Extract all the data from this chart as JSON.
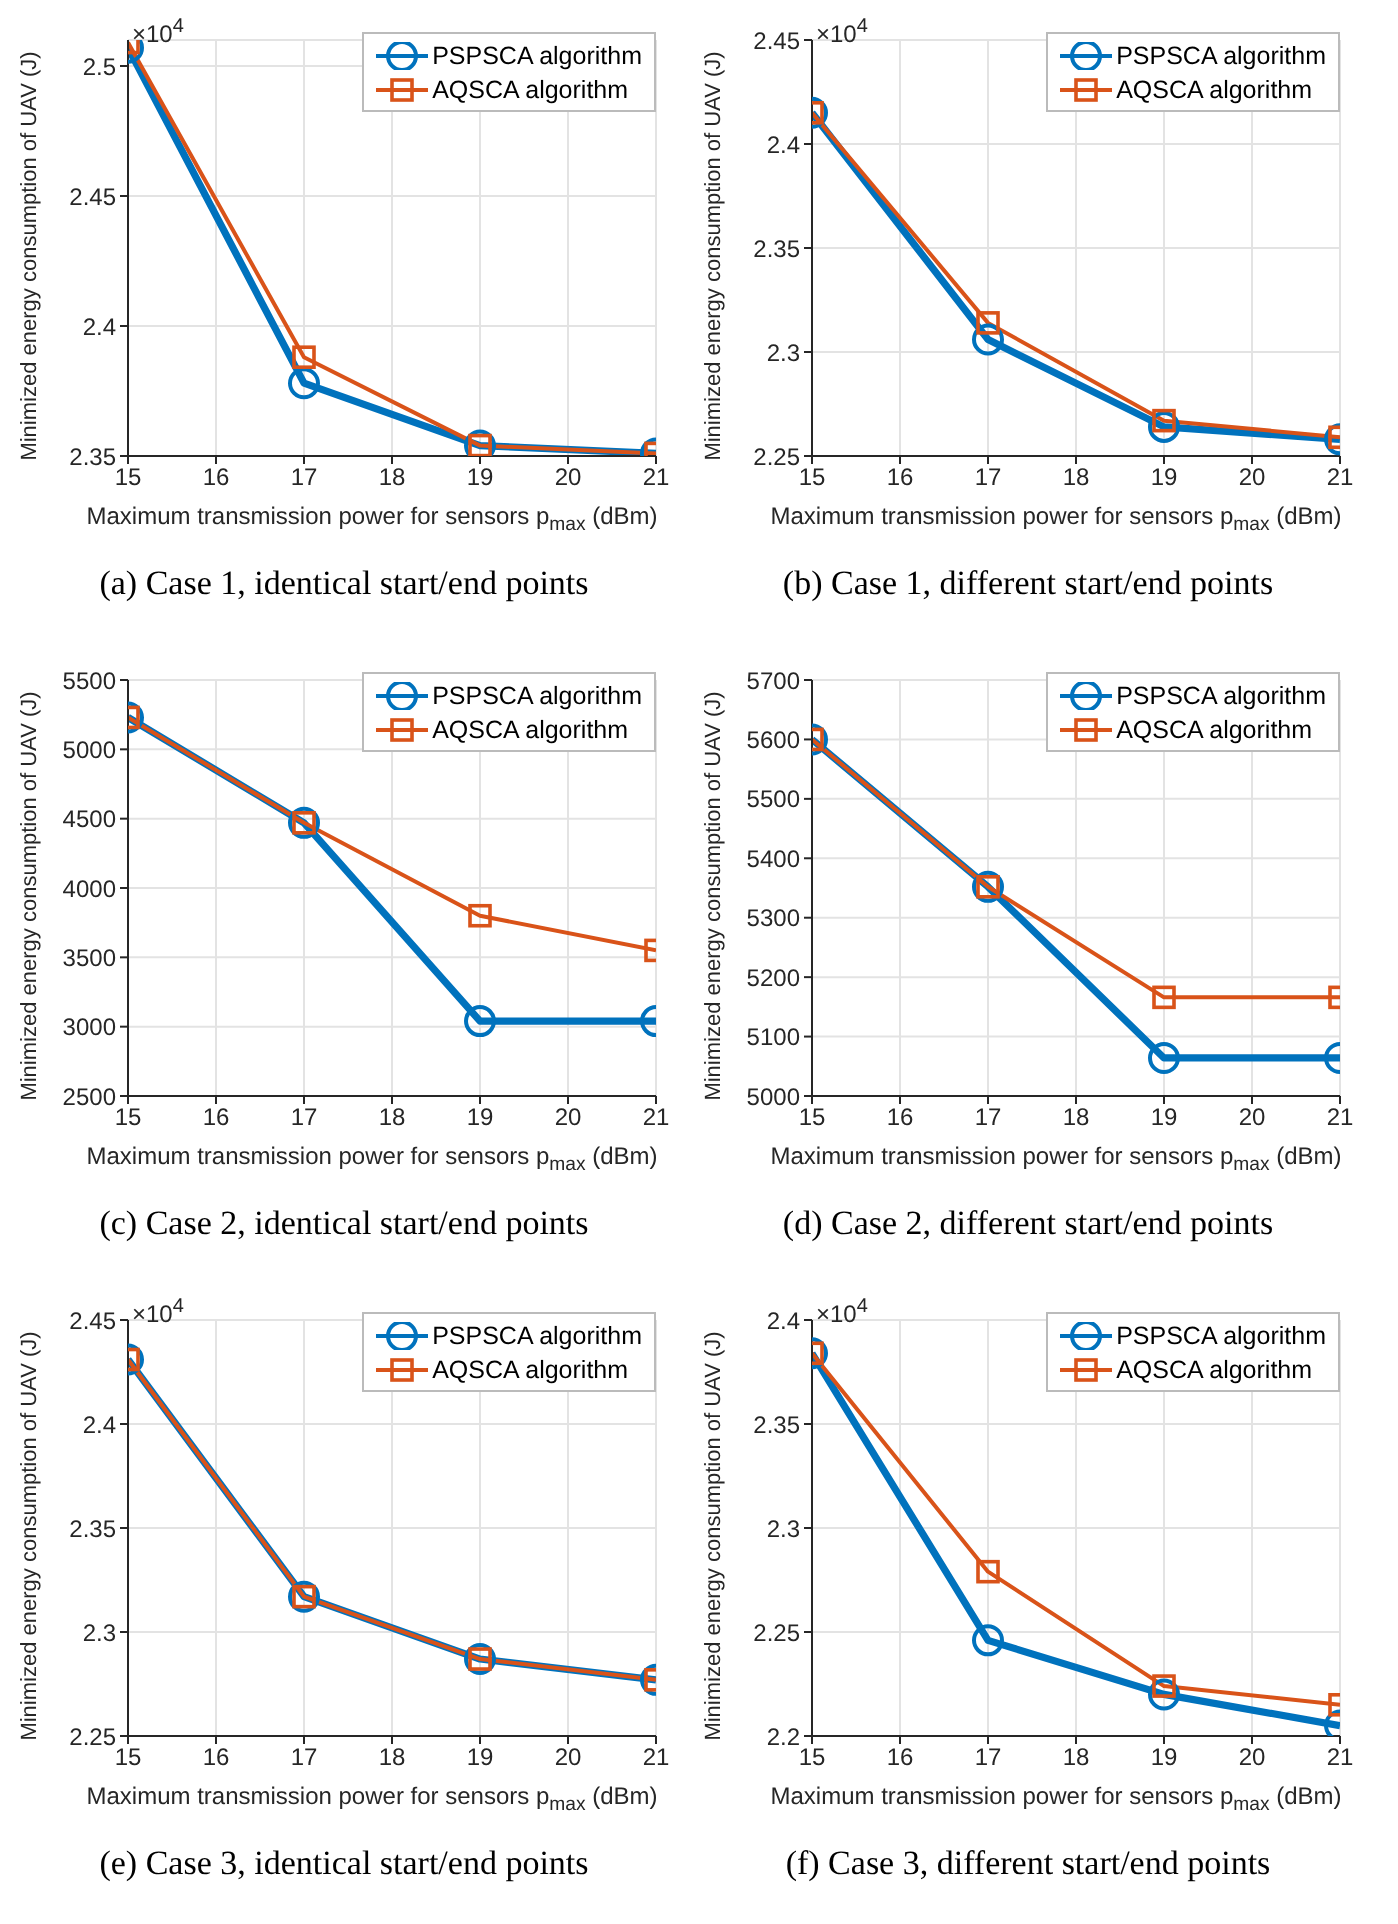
{
  "chart_data": [
    {
      "type": "line",
      "title": "(a) Case 1, identical start/end points",
      "xlabel": "Maximum transmission power for sensors p$_{max}$ (dBm)",
      "ylabel": "Minimized energy consumption of UAV (J)",
      "annotations": [
        "×10$^{4}$"
      ],
      "x": [
        15,
        17,
        19,
        21
      ],
      "xlim": [
        15,
        21
      ],
      "xticks": [
        15,
        16,
        17,
        18,
        19,
        20,
        21
      ],
      "ylim": [
        2.35,
        2.51
      ],
      "yticks": [
        2.35,
        2.4,
        2.45,
        2.5
      ],
      "grid": true,
      "legend": "top right",
      "series": [
        {
          "name": "PSPSCA algorithm",
          "color": "#0072bd",
          "marker": "circle",
          "values": [
            2.507,
            2.378,
            2.354,
            2.351
          ]
        },
        {
          "name": "AQSCA algorithm",
          "color": "#d95319",
          "marker": "square",
          "values": [
            2.509,
            2.388,
            2.354,
            2.351
          ]
        }
      ]
    },
    {
      "type": "line",
      "title": "(b) Case 1, different start/end points",
      "xlabel": "Maximum transmission power for sensors p$_{max}$ (dBm)",
      "ylabel": "Minimized energy consumption of UAV (J)",
      "annotations": [
        "×10$^{4}$"
      ],
      "x": [
        15,
        17,
        19,
        21
      ],
      "xlim": [
        15,
        21
      ],
      "xticks": [
        15,
        16,
        17,
        18,
        19,
        20,
        21
      ],
      "ylim": [
        2.25,
        2.45
      ],
      "yticks": [
        2.25,
        2.3,
        2.35,
        2.4,
        2.45
      ],
      "grid": true,
      "legend": "top right",
      "series": [
        {
          "name": "PSPSCA algorithm",
          "color": "#0072bd",
          "marker": "circle",
          "values": [
            2.415,
            2.306,
            2.264,
            2.258
          ]
        },
        {
          "name": "AQSCA algorithm",
          "color": "#d95319",
          "marker": "square",
          "values": [
            2.415,
            2.314,
            2.267,
            2.259
          ]
        }
      ]
    },
    {
      "type": "line",
      "title": "(c) Case 2, identical start/end points",
      "xlabel": "Maximum transmission power for sensors p$_{max}$ (dBm)",
      "ylabel": "Minimized energy consumption of UAV (J)",
      "x": [
        15,
        17,
        19,
        21
      ],
      "xlim": [
        15,
        21
      ],
      "xticks": [
        15,
        16,
        17,
        18,
        19,
        20,
        21
      ],
      "ylim": [
        2500,
        5500
      ],
      "yticks": [
        2500,
        3000,
        3500,
        4000,
        4500,
        5000,
        5500
      ],
      "grid": true,
      "legend": "top right",
      "series": [
        {
          "name": "PSPSCA algorithm",
          "color": "#0072bd",
          "marker": "circle",
          "values": [
            5230,
            4470,
            3040,
            3040
          ]
        },
        {
          "name": "AQSCA algorithm",
          "color": "#d95319",
          "marker": "square",
          "values": [
            5230,
            4470,
            3800,
            3550
          ]
        }
      ]
    },
    {
      "type": "line",
      "title": "(d) Case 2, different start/end points",
      "xlabel": "Maximum transmission power for sensors p$_{max}$ (dBm)",
      "ylabel": "Minimized energy consumption of UAV (J)",
      "x": [
        15,
        17,
        19,
        21
      ],
      "xlim": [
        15,
        21
      ],
      "xticks": [
        15,
        16,
        17,
        18,
        19,
        20,
        21
      ],
      "ylim": [
        5000,
        5700
      ],
      "yticks": [
        5000,
        5100,
        5200,
        5300,
        5400,
        5500,
        5600,
        5700
      ],
      "grid": true,
      "legend": "top right",
      "series": [
        {
          "name": "PSPSCA algorithm",
          "color": "#0072bd",
          "marker": "circle",
          "values": [
            5600,
            5352,
            5064,
            5064
          ]
        },
        {
          "name": "AQSCA algorithm",
          "color": "#d95319",
          "marker": "square",
          "values": [
            5600,
            5352,
            5166,
            5166
          ]
        }
      ]
    },
    {
      "type": "line",
      "title": "(e) Case 3, identical start/end points",
      "xlabel": "Maximum transmission power for sensors p$_{max}$ (dBm)",
      "ylabel": "Minimized energy consumption of UAV (J)",
      "annotations": [
        "×10$^{4}$"
      ],
      "x": [
        15,
        17,
        19,
        21
      ],
      "xlim": [
        15,
        21
      ],
      "xticks": [
        15,
        16,
        17,
        18,
        19,
        20,
        21
      ],
      "ylim": [
        2.25,
        2.45
      ],
      "yticks": [
        2.25,
        2.3,
        2.35,
        2.4,
        2.45
      ],
      "grid": true,
      "legend": "top right",
      "series": [
        {
          "name": "PSPSCA algorithm",
          "color": "#0072bd",
          "marker": "circle",
          "values": [
            2.431,
            2.317,
            2.287,
            2.277
          ]
        },
        {
          "name": "AQSCA algorithm",
          "color": "#d95319",
          "marker": "square",
          "values": [
            2.431,
            2.317,
            2.287,
            2.277
          ]
        }
      ]
    },
    {
      "type": "line",
      "title": "(f) Case 3, different start/end points",
      "xlabel": "Maximum transmission power for sensors p$_{max}$ (dBm)",
      "ylabel": "Minimized energy consumption of UAV (J)",
      "annotations": [
        "×10$^{4}$"
      ],
      "x": [
        15,
        17,
        19,
        21
      ],
      "xlim": [
        15,
        21
      ],
      "xticks": [
        15,
        16,
        17,
        18,
        19,
        20,
        21
      ],
      "ylim": [
        2.2,
        2.4
      ],
      "yticks": [
        2.2,
        2.25,
        2.3,
        2.35,
        2.4
      ],
      "grid": true,
      "legend": "top right",
      "series": [
        {
          "name": "PSPSCA algorithm",
          "color": "#0072bd",
          "marker": "circle",
          "values": [
            2.384,
            2.246,
            2.22,
            2.205
          ]
        },
        {
          "name": "AQSCA algorithm",
          "color": "#d95319",
          "marker": "square",
          "values": [
            2.384,
            2.279,
            2.224,
            2.215
          ]
        }
      ]
    }
  ]
}
